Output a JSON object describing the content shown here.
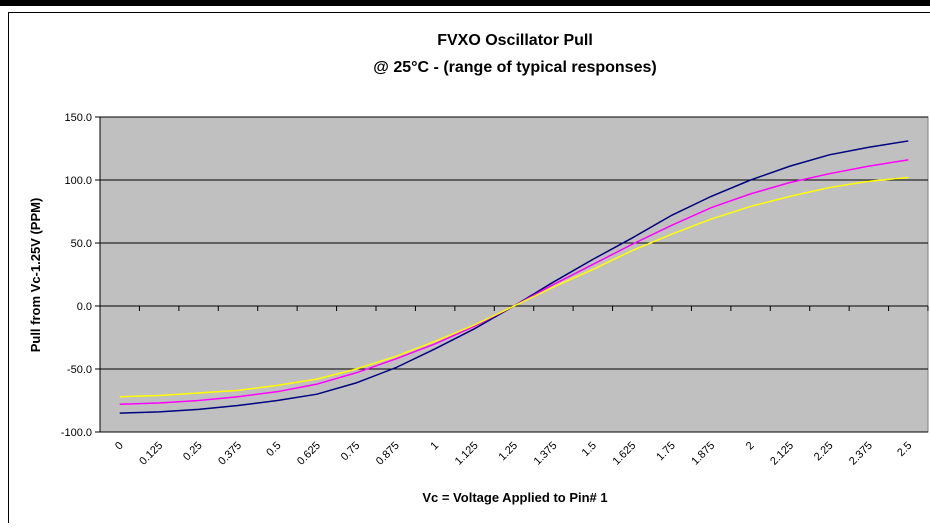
{
  "chart_data": {
    "type": "line",
    "title": "FVXO Oscillator Pull",
    "subtitle": "@ 25°C - (range of typical responses)",
    "x_label": "Vc = Voltage Applied to Pin# 1",
    "y_label": "Pull from Vc-1.25V (PPM)",
    "categories": [
      "0",
      "0.125",
      "0.25",
      "0.375",
      "0.5",
      "0.625",
      "0.75",
      "0.875",
      "1",
      "1.125",
      "1.25",
      "1.375",
      "1.5",
      "1.625",
      "1.75",
      "1.875",
      "2",
      "2.125",
      "2.25",
      "2.375",
      "2.5"
    ],
    "series": [
      {
        "color": "#000080",
        "values": [
          -85,
          -84,
          -82,
          -79,
          -75,
          -70,
          -61,
          -49,
          -34,
          -18,
          0,
          19,
          37,
          54,
          72,
          87,
          100,
          111,
          120,
          126,
          131
        ]
      },
      {
        "color": "#ff00ff",
        "values": [
          -78,
          -77,
          -75,
          -72,
          -68,
          -62,
          -53,
          -42,
          -30,
          -16,
          0,
          17,
          33,
          49,
          64,
          78,
          89,
          98,
          105,
          111,
          116
        ]
      },
      {
        "color": "#ffff00",
        "values": [
          -72,
          -71,
          -69,
          -67,
          -63,
          -58,
          -50,
          -40,
          -28,
          -15,
          0,
          15,
          29,
          44,
          57,
          69,
          79,
          87,
          94,
          99,
          102
        ]
      }
    ],
    "ylim": [
      -100,
      150
    ],
    "yticks": [
      {
        "value": -100,
        "label": "-100.0"
      },
      {
        "value": -50,
        "label": "-50.0"
      },
      {
        "value": 0,
        "label": "0.0"
      },
      {
        "value": 50,
        "label": "50.0"
      },
      {
        "value": 100,
        "label": "100.0"
      },
      {
        "value": 150,
        "label": "150.0"
      }
    ],
    "grid": true,
    "plot_background": "#c0c0c0"
  }
}
